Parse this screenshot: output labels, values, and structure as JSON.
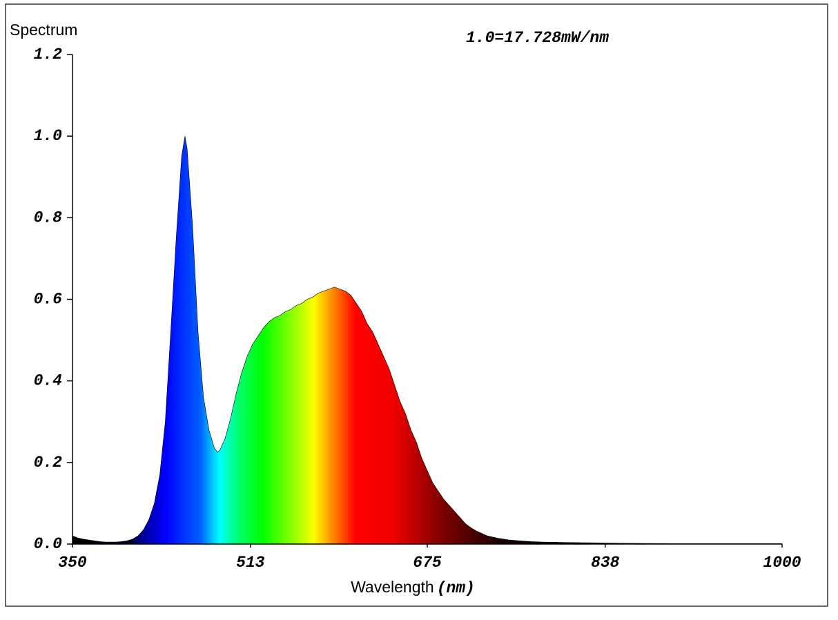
{
  "chart_data": {
    "type": "area",
    "y_label": "Spectrum",
    "annotation": "1.0=17.728mW/nm",
    "x_label": "Wavelength",
    "x_unit": "(nm)",
    "x": [
      350,
      355,
      360,
      365,
      370,
      375,
      380,
      385,
      390,
      395,
      400,
      405,
      410,
      415,
      420,
      425,
      430,
      435,
      440,
      445,
      450,
      453,
      455,
      460,
      465,
      470,
      475,
      480,
      483,
      485,
      490,
      495,
      500,
      505,
      510,
      515,
      520,
      525,
      530,
      535,
      540,
      545,
      550,
      555,
      560,
      565,
      570,
      575,
      580,
      585,
      590,
      595,
      600,
      605,
      610,
      615,
      620,
      625,
      630,
      635,
      640,
      645,
      650,
      655,
      660,
      665,
      670,
      675,
      680,
      685,
      690,
      695,
      700,
      705,
      710,
      715,
      720,
      725,
      730,
      740,
      750,
      760,
      770,
      780,
      800,
      825,
      850,
      900,
      950,
      1000
    ],
    "values": [
      0.02,
      0.015,
      0.012,
      0.01,
      0.008,
      0.006,
      0.005,
      0.005,
      0.005,
      0.006,
      0.008,
      0.012,
      0.02,
      0.035,
      0.06,
      0.1,
      0.17,
      0.3,
      0.52,
      0.75,
      0.95,
      1.0,
      0.97,
      0.78,
      0.52,
      0.36,
      0.28,
      0.235,
      0.225,
      0.23,
      0.26,
      0.31,
      0.37,
      0.42,
      0.46,
      0.49,
      0.51,
      0.53,
      0.545,
      0.555,
      0.56,
      0.57,
      0.575,
      0.585,
      0.59,
      0.6,
      0.605,
      0.615,
      0.62,
      0.625,
      0.63,
      0.625,
      0.62,
      0.61,
      0.59,
      0.57,
      0.54,
      0.52,
      0.49,
      0.46,
      0.43,
      0.39,
      0.35,
      0.32,
      0.28,
      0.25,
      0.21,
      0.18,
      0.15,
      0.13,
      0.11,
      0.095,
      0.08,
      0.065,
      0.05,
      0.04,
      0.032,
      0.026,
      0.02,
      0.014,
      0.01,
      0.008,
      0.006,
      0.005,
      0.004,
      0.003,
      0.002,
      0.001,
      0.001,
      0.001
    ],
    "xlim": [
      350,
      1000
    ],
    "xticks": [
      350,
      513,
      675,
      838,
      1000
    ],
    "ylim": [
      0,
      1.2
    ],
    "yticks": [
      {
        "value": 0,
        "label": "0.0"
      },
      0.2,
      0.4,
      0.6,
      0.8,
      {
        "value": 1,
        "label": "1.0"
      },
      1.2
    ],
    "grid": false
  }
}
